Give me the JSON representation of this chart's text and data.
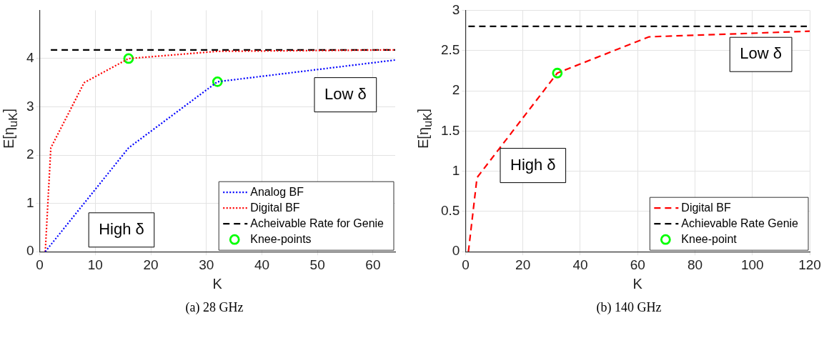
{
  "chart_data": [
    {
      "type": "line",
      "xlabel": "K",
      "ylabel": "E[η$_{uK}$]",
      "xlim": [
        0,
        64
      ],
      "xticks": [
        0,
        10,
        20,
        30,
        40,
        50,
        60
      ],
      "ylim": [
        0,
        5
      ],
      "yticks": [
        0,
        1,
        2,
        3,
        4
      ],
      "grid": true,
      "legend": "bottom right",
      "series": [
        {
          "name": "Analog BF",
          "color": "#0000ff",
          "line_style": "dotted",
          "x": [
            1,
            16,
            32,
            64
          ],
          "values": [
            0,
            2.15,
            3.52,
            3.97
          ]
        },
        {
          "name": "Digital BF",
          "color": "#ff0000",
          "line_style": "dotted",
          "x": [
            1,
            2,
            8,
            16,
            32,
            64
          ],
          "values": [
            0,
            2.15,
            3.5,
            4.0,
            4.15,
            4.18
          ]
        },
        {
          "name": "Acheivable Rate for Genie",
          "color": "#000000",
          "line_style": "dashed",
          "x": [
            2,
            64
          ],
          "values": [
            4.18,
            4.18
          ]
        },
        {
          "name": "Knee-points",
          "type": "scatter",
          "marker": "circle",
          "color": "#00ff00",
          "x": [
            16,
            32
          ],
          "values": [
            4.0,
            3.52
          ]
        }
      ],
      "annotations": [
        "Low δ",
        "High δ",
        "(a)  28 GHz"
      ]
    },
    {
      "type": "line",
      "xlabel": "K",
      "ylabel": "E[η$_{uK}$]",
      "xlim": [
        0,
        120
      ],
      "xticks": [
        0,
        20,
        40,
        60,
        80,
        100,
        120
      ],
      "ylim": [
        0,
        3
      ],
      "yticks": [
        0,
        0.5,
        1,
        1.5,
        2,
        2.5,
        3
      ],
      "grid": true,
      "legend": "bottom right",
      "series": [
        {
          "name": "Digital BF",
          "color": "#ff0000",
          "line_style": "dashed",
          "x": [
            1,
            4,
            32,
            64,
            120
          ],
          "values": [
            0,
            0.92,
            2.22,
            2.67,
            2.74
          ]
        },
        {
          "name": "Achievable Rate Genie",
          "color": "#000000",
          "line_style": "dashed",
          "x": [
            1,
            119
          ],
          "values": [
            2.8,
            2.8
          ]
        },
        {
          "name": "Knee-point",
          "type": "scatter",
          "marker": "circle",
          "color": "#00ff00",
          "x": [
            32
          ],
          "values": [
            2.22
          ]
        }
      ],
      "annotations": [
        "High δ",
        "Low δ",
        "(b)  140 GHz"
      ]
    }
  ]
}
